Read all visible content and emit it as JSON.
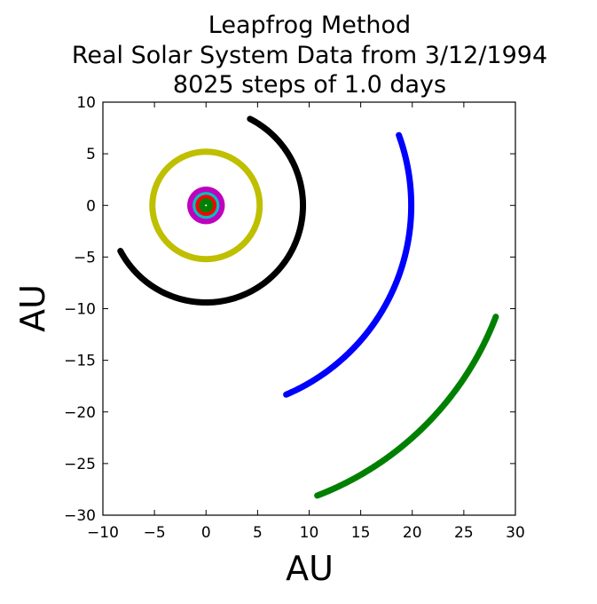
{
  "chart_data": {
    "type": "line",
    "title_lines": [
      "Leapfrog Method",
      "Real Solar System Data from 3/12/1994",
      "8025 steps of 1.0 days"
    ],
    "xlabel": "AU",
    "ylabel": "AU",
    "xlim": [
      -10,
      30
    ],
    "ylim": [
      -30,
      10
    ],
    "x_ticks": [
      -10,
      -5,
      0,
      5,
      10,
      15,
      20,
      25,
      30
    ],
    "y_ticks": [
      10,
      5,
      0,
      -5,
      -10,
      -15,
      -20,
      -25,
      -30
    ],
    "x_tick_labels": [
      "−10",
      "−5",
      "0",
      "5",
      "10",
      "15",
      "20",
      "25",
      "30"
    ],
    "y_tick_labels": [
      "10",
      "5",
      "0",
      "−5",
      "−10",
      "−15",
      "−20",
      "−25",
      "−30"
    ],
    "grid": false,
    "legend": "none",
    "series": [
      {
        "color": "#000000",
        "shape": "arc",
        "center": [
          0,
          0
        ],
        "radius": 9.4,
        "start_deg": 208,
        "end_deg": 423
      },
      {
        "color": "#0000ff",
        "shape": "arc",
        "center": [
          0,
          0
        ],
        "radius": 19.9,
        "start_deg": 293,
        "end_deg": 380
      },
      {
        "color": "#008000",
        "shape": "arc",
        "center": [
          0,
          0
        ],
        "radius": 30.1,
        "start_deg": 291,
        "end_deg": 339
      },
      {
        "color": "#bfbf00",
        "shape": "circle",
        "center": [
          0,
          0
        ],
        "radius": 5.2
      },
      {
        "color": "#bf00bf",
        "shape": "circle",
        "center": [
          0,
          0
        ],
        "radius": 1.52
      },
      {
        "color": "#00bfbf",
        "shape": "circle",
        "center": [
          0,
          0
        ],
        "radius": 1.0
      },
      {
        "color": "#ff0000",
        "shape": "circle",
        "center": [
          0,
          0
        ],
        "radius": 0.72
      },
      {
        "color": "#008000",
        "shape": "circle",
        "center": [
          0,
          0
        ],
        "radius": 0.39
      }
    ]
  }
}
